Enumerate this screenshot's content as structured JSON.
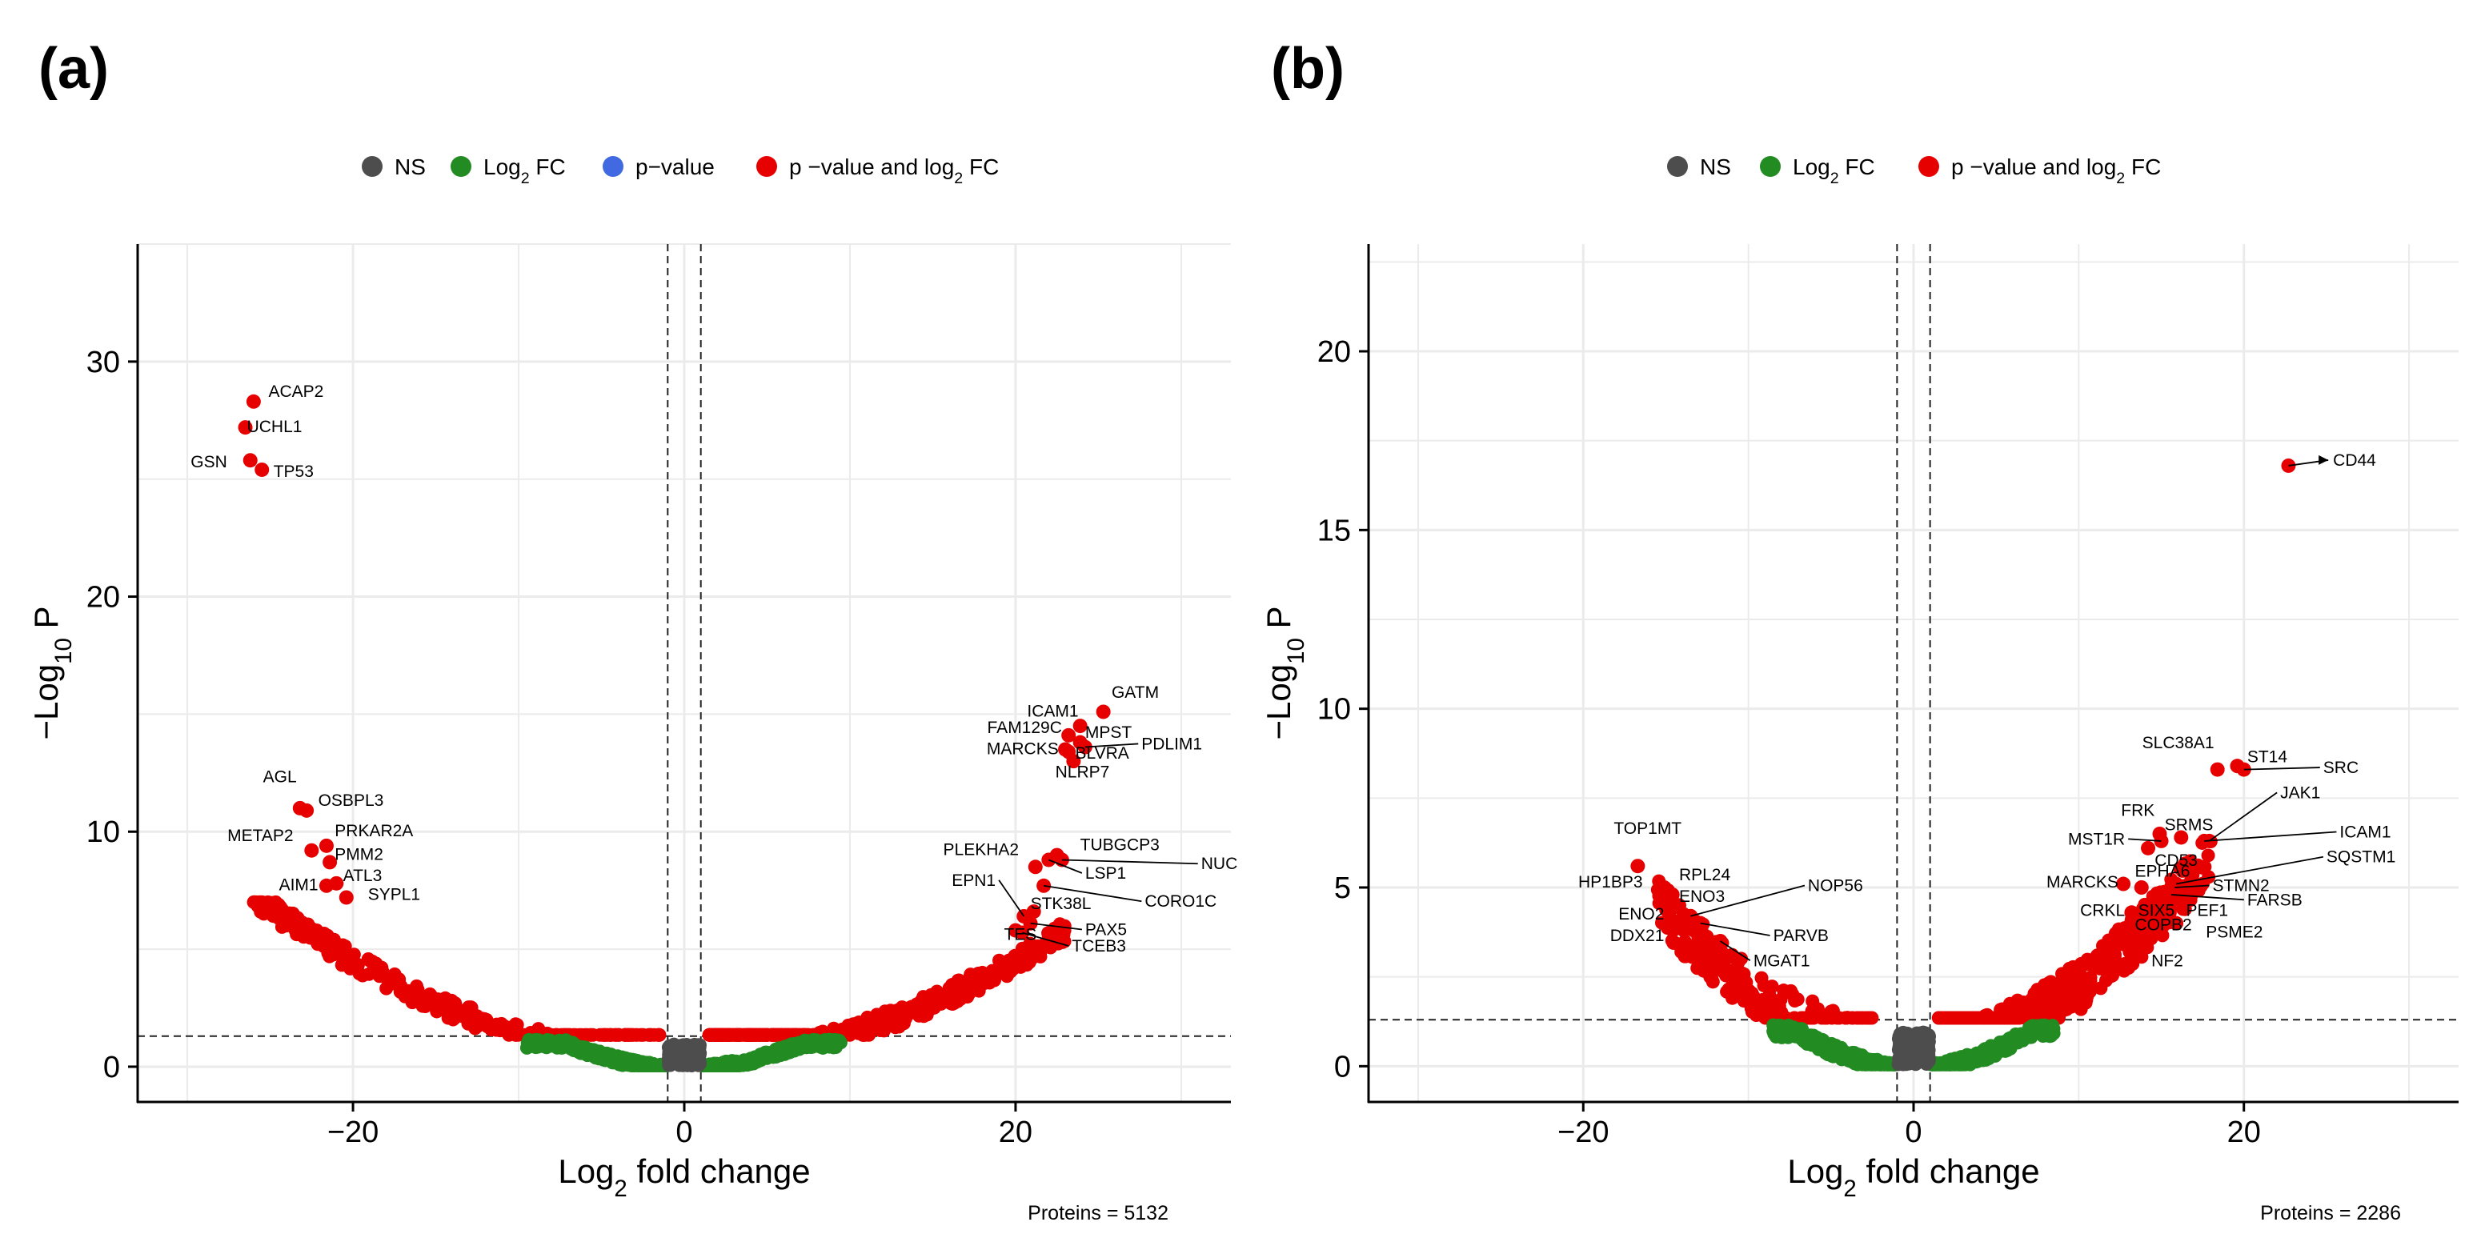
{
  "chart_data": [
    {
      "type": "scatter",
      "panel": "(a)",
      "legend": [
        {
          "label": "NS",
          "color": "#4d4d4d"
        },
        {
          "label": "Log",
          "sub": "2",
          "suffix": " FC",
          "color": "#228b22"
        },
        {
          "label": "p−value",
          "color": "#4169e1"
        },
        {
          "label": "p −value and log",
          "sub": "2",
          "suffix": " FC",
          "color": "#e60000"
        }
      ],
      "xlabel": {
        "main": "Log",
        "sub": "2",
        "rest": " fold change"
      },
      "ylabel": {
        "main": "−Log",
        "sub": "10",
        "rest": " P"
      },
      "xlim": [
        -33,
        33
      ],
      "ylim": [
        -1.5,
        35
      ],
      "xticks": [
        -20,
        0,
        20
      ],
      "xtick_labels": [
        "−20",
        "0",
        "20"
      ],
      "yticks": [
        0,
        10,
        20,
        30
      ],
      "ytick_labels": [
        "0",
        "10",
        "20",
        "30"
      ],
      "fc_cutoff": 1,
      "p_cutoff": 1.3,
      "caption": "Proteins = 5132",
      "labels": [
        {
          "text": "ACAP2",
          "x": -26,
          "y": 28.3,
          "tx": -25.1,
          "ty": 28.5,
          "anchor": "start"
        },
        {
          "text": "UCHL1",
          "x": -26.5,
          "y": 27.2,
          "tx": -26.4,
          "ty": 27.0,
          "anchor": "start"
        },
        {
          "text": "GSN",
          "x": -26.2,
          "y": 25.8,
          "tx": -27.6,
          "ty": 25.5,
          "anchor": "end"
        },
        {
          "text": "TP53",
          "x": -25.5,
          "y": 25.4,
          "tx": -24.8,
          "ty": 25.1,
          "anchor": "start"
        },
        {
          "text": "AGL",
          "x": -23.2,
          "y": 11.0,
          "tx": -23.4,
          "ty": 12.1,
          "anchor": "end"
        },
        {
          "text": "OSBPL3",
          "x": -22.8,
          "y": 10.9,
          "tx": -22.1,
          "ty": 11.1,
          "anchor": "start"
        },
        {
          "text": "METAP2",
          "x": -22.5,
          "y": 9.2,
          "tx": -23.6,
          "ty": 9.6,
          "anchor": "end"
        },
        {
          "text": "PRKAR2A",
          "x": -21.6,
          "y": 9.4,
          "tx": -21.1,
          "ty": 9.8,
          "anchor": "start"
        },
        {
          "text": "PMM2",
          "x": -21.4,
          "y": 8.7,
          "tx": -21.1,
          "ty": 8.8,
          "anchor": "start"
        },
        {
          "text": "ATL3",
          "x": -21.0,
          "y": 7.8,
          "tx": -20.6,
          "ty": 7.9,
          "anchor": "start"
        },
        {
          "text": "AIM1",
          "x": -21.6,
          "y": 7.7,
          "tx": -22.1,
          "ty": 7.5,
          "anchor": "end"
        },
        {
          "text": "SYPL1",
          "x": -20.4,
          "y": 7.2,
          "tx": -19.1,
          "ty": 7.1,
          "anchor": "start"
        },
        {
          "text": "GATM",
          "x": 25.3,
          "y": 15.1,
          "tx": 25.8,
          "ty": 15.7,
          "anchor": "start"
        },
        {
          "text": "ICAM1",
          "x": 23.9,
          "y": 14.5,
          "tx": 23.8,
          "ty": 14.9,
          "anchor": "end"
        },
        {
          "text": "FAM129C",
          "x": 23.2,
          "y": 14.1,
          "tx": 22.8,
          "ty": 14.2,
          "anchor": "end"
        },
        {
          "text": "MPST",
          "x": 23.9,
          "y": 13.8,
          "tx": 24.2,
          "ty": 14.0,
          "anchor": "start"
        },
        {
          "text": "MARCKS",
          "x": 23.0,
          "y": 13.5,
          "tx": 22.6,
          "ty": 13.3,
          "anchor": "end"
        },
        {
          "text": "BLVRA",
          "x": 23.2,
          "y": 13.4,
          "tx": 23.6,
          "ty": 13.1,
          "anchor": "start"
        },
        {
          "text": "PDLIM1",
          "x": 24.2,
          "y": 13.6,
          "tx": 27.6,
          "ty": 13.5,
          "anchor": "start"
        },
        {
          "text": "NLRP7",
          "x": 23.5,
          "y": 13.0,
          "tx": 22.4,
          "ty": 12.3,
          "anchor": "start"
        },
        {
          "text": "PLEKHA2",
          "x": 21.2,
          "y": 8.5,
          "tx": 20.2,
          "ty": 9.0,
          "anchor": "end"
        },
        {
          "text": "TUBGCP3",
          "x": 22.5,
          "y": 9.0,
          "tx": 23.9,
          "ty": 9.2,
          "anchor": "start"
        },
        {
          "text": "NUC",
          "x": 22.8,
          "y": 8.8,
          "tx": 31.2,
          "ty": 8.4,
          "anchor": "start"
        },
        {
          "text": "LSP1",
          "x": 22.0,
          "y": 8.8,
          "tx": 24.2,
          "ty": 8.0,
          "anchor": "start"
        },
        {
          "text": "EPN1",
          "x": 20.5,
          "y": 6.4,
          "tx": 18.8,
          "ty": 7.7,
          "anchor": "end"
        },
        {
          "text": "CORO1C",
          "x": 21.7,
          "y": 7.7,
          "tx": 27.8,
          "ty": 6.8,
          "anchor": "start"
        },
        {
          "text": "STK38L",
          "x": 21.1,
          "y": 6.6,
          "tx": 20.9,
          "ty": 6.7,
          "anchor": "start"
        },
        {
          "text": "PAX5",
          "x": 20.9,
          "y": 6.1,
          "tx": 24.2,
          "ty": 5.6,
          "anchor": "start"
        },
        {
          "text": "TES",
          "x": 20.0,
          "y": 5.8,
          "tx": 19.3,
          "ty": 5.4,
          "anchor": "start"
        },
        {
          "text": "TCEB3",
          "x": 20.4,
          "y": 5.7,
          "tx": 23.4,
          "ty": 4.9,
          "anchor": "start"
        }
      ],
      "clusters": [
        {
          "type": "left_red",
          "n": 300,
          "xmin": -26,
          "xmax": -1.5
        },
        {
          "type": "right_red",
          "n": 520,
          "xmin": 1.5,
          "xmax": 23
        },
        {
          "type": "green",
          "n": 700,
          "xmin": -9.5,
          "xmax": 9.5
        },
        {
          "type": "ns",
          "n": 260
        }
      ]
    },
    {
      "type": "scatter",
      "panel": "(b)",
      "legend": [
        {
          "label": "NS",
          "color": "#4d4d4d"
        },
        {
          "label": "Log",
          "sub": "2",
          "suffix": " FC",
          "color": "#228b22"
        },
        {
          "label": "p −value and log",
          "sub": "2",
          "suffix": " FC",
          "color": "#e60000"
        }
      ],
      "xlabel": {
        "main": "Log",
        "sub": "2",
        "rest": " fold change"
      },
      "ylabel": {
        "main": "−Log",
        "sub": "10",
        "rest": " P"
      },
      "xlim": [
        -33,
        33
      ],
      "ylim": [
        -1.0,
        23
      ],
      "xticks": [
        -20,
        0,
        20
      ],
      "xtick_labels": [
        "−20",
        "0",
        "20"
      ],
      "yticks": [
        0,
        5,
        10,
        15,
        20
      ],
      "ytick_labels": [
        "0",
        "5",
        "10",
        "15",
        "20"
      ],
      "fc_cutoff": 1,
      "p_cutoff": 1.3,
      "caption": "Proteins = 2286",
      "labels": [
        {
          "text": "CD44",
          "x": 22.7,
          "y": 16.8,
          "tx": 25.4,
          "ty": 16.8,
          "anchor": "start",
          "arrow": true
        },
        {
          "text": "SLC38A1",
          "x": 18.4,
          "y": 8.3,
          "tx": 18.2,
          "ty": 8.9,
          "anchor": "end"
        },
        {
          "text": "ST14",
          "x": 19.6,
          "y": 8.4,
          "tx": 20.2,
          "ty": 8.5,
          "anchor": "start"
        },
        {
          "text": "SRC",
          "x": 20.0,
          "y": 8.3,
          "tx": 24.8,
          "ty": 8.2,
          "anchor": "start"
        },
        {
          "text": "JAK1",
          "x": 17.9,
          "y": 6.3,
          "tx": 22.2,
          "ty": 7.5,
          "anchor": "start"
        },
        {
          "text": "FRK",
          "x": 14.9,
          "y": 6.5,
          "tx": 14.6,
          "ty": 7.0,
          "anchor": "end"
        },
        {
          "text": "SRMS",
          "x": 16.2,
          "y": 6.4,
          "tx": 15.2,
          "ty": 6.6,
          "anchor": "start"
        },
        {
          "text": "MST1R",
          "x": 15.0,
          "y": 6.3,
          "tx": 12.8,
          "ty": 6.2,
          "anchor": "end"
        },
        {
          "text": "ICAM1",
          "x": 17.6,
          "y": 6.3,
          "tx": 25.8,
          "ty": 6.4,
          "anchor": "start"
        },
        {
          "text": "CD53",
          "x": 14.2,
          "y": 6.1,
          "tx": 14.6,
          "ty": 5.6,
          "anchor": "start"
        },
        {
          "text": "SQSTM1",
          "x": 15.9,
          "y": 5.1,
          "tx": 25.0,
          "ty": 5.7,
          "anchor": "start"
        },
        {
          "text": "MARCKS",
          "x": 12.7,
          "y": 5.1,
          "tx": 12.4,
          "ty": 5.0,
          "anchor": "end"
        },
        {
          "text": "EPHA6",
          "x": 13.8,
          "y": 5.0,
          "tx": 13.4,
          "ty": 5.3,
          "anchor": "start"
        },
        {
          "text": "STMN2",
          "x": 15.8,
          "y": 5.0,
          "tx": 18.1,
          "ty": 4.9,
          "anchor": "start"
        },
        {
          "text": "FARSB",
          "x": 15.6,
          "y": 4.8,
          "tx": 20.2,
          "ty": 4.5,
          "anchor": "start"
        },
        {
          "text": "CRKL",
          "x": 13.2,
          "y": 4.3,
          "tx": 12.8,
          "ty": 4.2,
          "anchor": "end"
        },
        {
          "text": "SIX5",
          "x": 13.9,
          "y": 4.4,
          "tx": 13.6,
          "ty": 4.2,
          "anchor": "start"
        },
        {
          "text": "PEF1",
          "x": 15.5,
          "y": 4.3,
          "tx": 16.5,
          "ty": 4.2,
          "anchor": "start"
        },
        {
          "text": "COPB2",
          "x": 14.0,
          "y": 4.0,
          "tx": 13.4,
          "ty": 3.8,
          "anchor": "start"
        },
        {
          "text": "PSME2",
          "x": 15.9,
          "y": 4.0,
          "tx": 17.7,
          "ty": 3.6,
          "anchor": "start"
        },
        {
          "text": "NF2",
          "x": 13.1,
          "y": 3.2,
          "tx": 14.4,
          "ty": 2.8,
          "anchor": "start"
        },
        {
          "text": "TOP1MT",
          "x": -16.7,
          "y": 5.6,
          "tx": -16.1,
          "ty": 6.5,
          "anchor": "middle"
        },
        {
          "text": "HP1BP3",
          "x": -15.1,
          "y": 5.0,
          "tx": -16.4,
          "ty": 5.0,
          "anchor": "end"
        },
        {
          "text": "RPL24",
          "x": -14.6,
          "y": 4.8,
          "tx": -14.2,
          "ty": 5.2,
          "anchor": "start"
        },
        {
          "text": "ENO3",
          "x": -14.2,
          "y": 4.5,
          "tx": -14.2,
          "ty": 4.6,
          "anchor": "start"
        },
        {
          "text": "NOP56",
          "x": -13.5,
          "y": 4.2,
          "tx": -6.4,
          "ty": 4.9,
          "anchor": "start"
        },
        {
          "text": "ENO2",
          "x": -14.8,
          "y": 4.3,
          "tx": -15.1,
          "ty": 4.1,
          "anchor": "end"
        },
        {
          "text": "PARVB",
          "x": -12.9,
          "y": 4.0,
          "tx": -8.5,
          "ty": 3.5,
          "anchor": "start"
        },
        {
          "text": "DDX21",
          "x": -13.3,
          "y": 3.8,
          "tx": -15.1,
          "ty": 3.5,
          "anchor": "end"
        },
        {
          "text": "MGAT1",
          "x": -11.7,
          "y": 3.5,
          "tx": -9.7,
          "ty": 2.8,
          "anchor": "start"
        }
      ],
      "clusters": [
        {
          "type": "left_red",
          "n": 180,
          "xmin": -15.5,
          "xmax": -2.5
        },
        {
          "type": "right_red",
          "n": 420,
          "xmin": 1.5,
          "xmax": 18
        },
        {
          "type": "green",
          "n": 500,
          "xmin": -8.5,
          "xmax": 8.5
        },
        {
          "type": "ns",
          "n": 200
        }
      ]
    }
  ]
}
